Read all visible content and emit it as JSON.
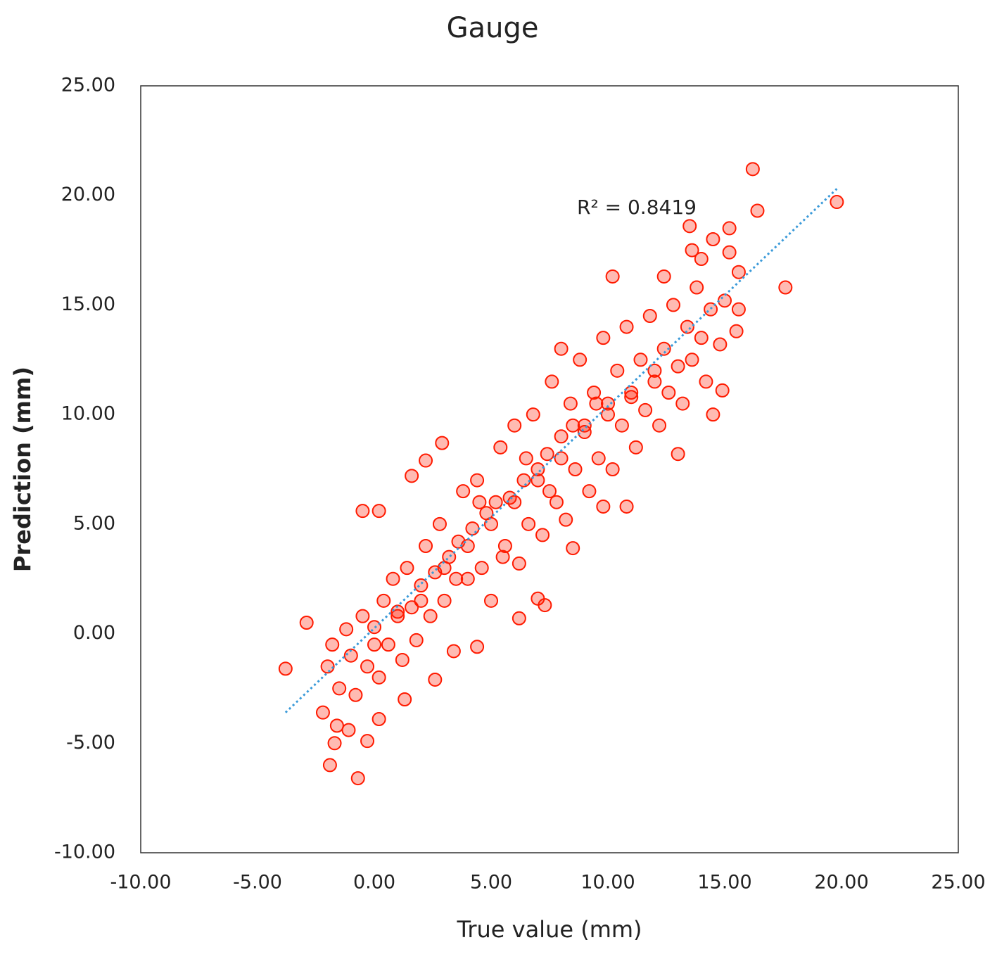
{
  "chart_data": {
    "type": "scatter",
    "title": "Gauge",
    "x_label": "True value (mm)",
    "y_label": "Prediction (mm)",
    "x": [
      -3.8,
      -2.9,
      -2.2,
      -1.9,
      -1.7,
      -0.7,
      -0.3,
      0.2,
      -1.1,
      1.3,
      -1.6,
      16.2,
      16.4,
      19.8,
      17.6,
      15.6,
      15.5,
      14.9,
      14.5,
      13.0,
      10.8,
      6.2,
      7.3,
      7.0,
      -0.5,
      2.2,
      1.6,
      0.2,
      2.9,
      13.5,
      15.2,
      14.5,
      13.6,
      14.0,
      15.2,
      15.6,
      10.2,
      12.4,
      8.0,
      8.5,
      9.8,
      4.4,
      2.6,
      -2,
      -1.8,
      -1.5,
      -1.2,
      -1,
      -0.8,
      -0.5,
      -0.3,
      0,
      0.2,
      0.4,
      0.6,
      0.8,
      1,
      1.2,
      1.4,
      1.6,
      1.8,
      2,
      2.2,
      2.4,
      2.6,
      2.8,
      3,
      3.2,
      3.4,
      3.6,
      3.8,
      4,
      4.2,
      4.4,
      4.6,
      4.8,
      5,
      5.2,
      5.4,
      5.6,
      5.8,
      6,
      6.2,
      6.4,
      6.6,
      6.8,
      7,
      7.2,
      7.4,
      7.6,
      7.8,
      8,
      8.2,
      8.4,
      8.6,
      8.8,
      9,
      9.2,
      9.4,
      9.6,
      9.8,
      10,
      10.2,
      10.4,
      10.6,
      10.8,
      11,
      11.2,
      11.4,
      11.6,
      11.8,
      12,
      12.2,
      12.4,
      12.6,
      12.8,
      13,
      13.2,
      13.4,
      13.6,
      13.8,
      14,
      14.2,
      14.4,
      14.8,
      15,
      5,
      6,
      7,
      8,
      9,
      4,
      3,
      2,
      1,
      0,
      10,
      11,
      12,
      6.5,
      5.5,
      4.5,
      7.5,
      8.5,
      9.5,
      3.5
    ],
    "values": [
      -1.6,
      0.5,
      -3.6,
      -6,
      -5,
      -6.6,
      -4.9,
      -3.9,
      -4.4,
      -3,
      -4.2,
      21.2,
      19.3,
      19.7,
      15.8,
      14.8,
      13.8,
      11.1,
      10,
      8.2,
      5.8,
      0.7,
      1.3,
      1.6,
      5.6,
      7.9,
      7.2,
      5.6,
      8.7,
      18.6,
      18.5,
      18,
      17.5,
      17.1,
      17.4,
      16.5,
      16.3,
      16.3,
      13,
      3.9,
      5.8,
      -0.6,
      -2.1,
      -1.5,
      -0.5,
      -2.5,
      0.2,
      -1,
      -2.8,
      0.8,
      -1.5,
      0.3,
      -2,
      1.5,
      -0.5,
      2.5,
      0.8,
      -1.2,
      3,
      1.2,
      -0.3,
      2.2,
      4,
      0.8,
      2.8,
      5,
      1.5,
      3.5,
      -0.8,
      4.2,
      6.5,
      2.5,
      4.8,
      7,
      3,
      5.5,
      1.5,
      6,
      8.5,
      4,
      6.2,
      9.5,
      3.2,
      7,
      5,
      10,
      7.5,
      4.5,
      8.2,
      11.5,
      6,
      9,
      5.2,
      10.5,
      7.5,
      12.5,
      9.2,
      6.5,
      11,
      8,
      13.5,
      10.5,
      7.5,
      12,
      9.5,
      14,
      11,
      8.5,
      12.5,
      10.2,
      14.5,
      11.5,
      9.5,
      13,
      11,
      15,
      12.2,
      10.5,
      14,
      12.5,
      15.8,
      13.5,
      11.5,
      14.8,
      13.2,
      15.2,
      5,
      6,
      7,
      8,
      9.5,
      4,
      3,
      1.5,
      1,
      -0.5,
      10,
      10.8,
      12,
      8,
      3.5,
      6,
      6.5,
      9.5,
      10.5,
      2.5
    ],
    "color": "#ff1a00",
    "trendline": {
      "x": [
        -3.8,
        19.8
      ],
      "values": [
        -3.6,
        20.3
      ],
      "color": "#3a9ad9"
    },
    "annotations": [
      "R² = 0.8419"
    ],
    "xlim": [
      -10,
      25
    ],
    "xticks": [
      {
        "value": -10,
        "label": "-10.00"
      },
      {
        "value": -5,
        "label": "-5.00"
      },
      {
        "value": 0,
        "label": "0.00"
      },
      {
        "value": 5,
        "label": "5.00"
      },
      {
        "value": 10,
        "label": "10.00"
      },
      {
        "value": 15,
        "label": "15.00"
      },
      {
        "value": 20,
        "label": "20.00"
      },
      {
        "value": 25,
        "label": "25.00"
      }
    ],
    "ylim": [
      -10,
      25
    ],
    "yticks": [
      {
        "value": -10,
        "label": "-10.00"
      },
      {
        "value": -5,
        "label": "-5.00"
      },
      {
        "value": 0,
        "label": "0.00"
      },
      {
        "value": 5,
        "label": "5.00"
      },
      {
        "value": 10,
        "label": "10.00"
      },
      {
        "value": 15,
        "label": "15.00"
      },
      {
        "value": 20,
        "label": "20.00"
      },
      {
        "value": 25,
        "label": "25.00"
      }
    ],
    "grid": false
  }
}
